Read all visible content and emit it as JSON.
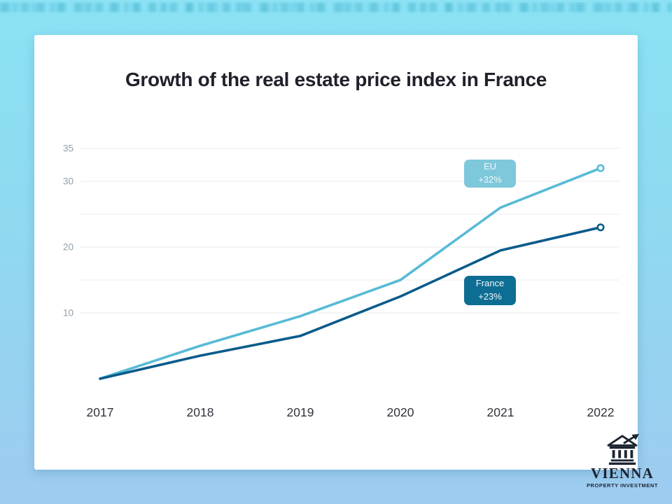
{
  "background": {
    "gradient_top": "#8be2f4",
    "gradient_bottom": "#9ecbf0",
    "card_color": "#ffffff"
  },
  "chart_data": {
    "type": "line",
    "title": "Growth of the real estate price index in France",
    "x_labels": [
      "2017",
      "2018",
      "2019",
      "2020",
      "2021",
      "2022"
    ],
    "series": [
      {
        "name": "EU",
        "growth_label": "+32%",
        "color": "#57bbd5",
        "callout_bg": "#7ec8db",
        "values": [
          0,
          5,
          9.5,
          15,
          26,
          32
        ]
      },
      {
        "name": "France",
        "growth_label": "+23%",
        "color": "#0a5b8b",
        "callout_bg": "#0e6d93",
        "values": [
          0,
          3.5,
          6.5,
          12.5,
          19.5,
          23
        ]
      }
    ],
    "ylim": [
      0,
      37.5
    ],
    "ytick_labels": [
      "10",
      "20",
      "30",
      "35"
    ],
    "gridline_values": [
      10,
      15,
      20,
      25,
      30,
      35
    ],
    "grid_color": "#e9ebed",
    "ytick_color": "#93a0ab",
    "xtick_color": "#33333b",
    "legend_position": "inline-callouts",
    "end_markers": "open-circle"
  },
  "logo": {
    "brand": "VIENNA",
    "tagline": "PROPERTY INVESTMENT"
  }
}
